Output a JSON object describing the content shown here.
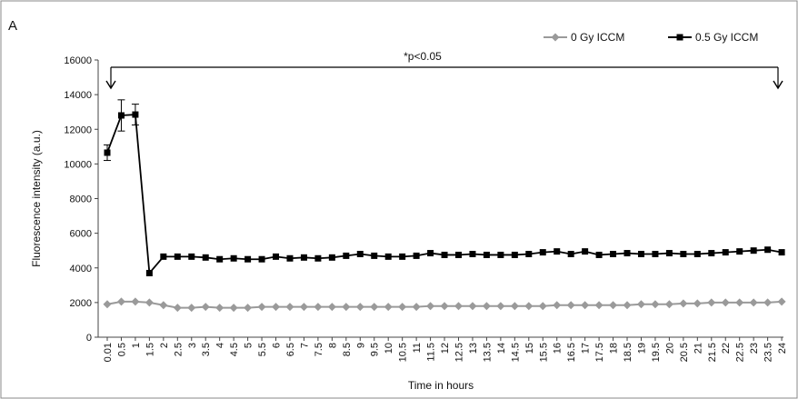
{
  "panel_label": "A",
  "chart_data": {
    "type": "line",
    "xlabel": "Time in hours",
    "ylabel": "Fluorescence intensity (a.u.)",
    "ylim": [
      0,
      16000
    ],
    "yticks": [
      0,
      2000,
      4000,
      6000,
      8000,
      10000,
      12000,
      14000,
      16000
    ],
    "grid": false,
    "legend_position": "top-right",
    "annotation": "*p<0.05",
    "x": [
      "0.01",
      "0.5",
      "1",
      "1.5",
      "2",
      "2.5",
      "3",
      "3.5",
      "4",
      "4.5",
      "5",
      "5.5",
      "6",
      "6.5",
      "7",
      "7.5",
      "8",
      "8.5",
      "9",
      "9.5",
      "10",
      "10.5",
      "11",
      "11.5",
      "12",
      "12.5",
      "13",
      "13.5",
      "14",
      "14.5",
      "15",
      "15.5",
      "16",
      "16.5",
      "17",
      "17.5",
      "18",
      "18.5",
      "19",
      "19.5",
      "20",
      "20.5",
      "21",
      "21.5",
      "22",
      "22.5",
      "23",
      "23.5",
      "24"
    ],
    "series": [
      {
        "name": "0 Gy ICCM",
        "color": "#9a9a9a",
        "marker": "diamond",
        "values": [
          1900,
          2050,
          2050,
          2000,
          1850,
          1700,
          1700,
          1750,
          1700,
          1700,
          1700,
          1750,
          1750,
          1750,
          1750,
          1750,
          1750,
          1750,
          1750,
          1750,
          1750,
          1750,
          1750,
          1800,
          1800,
          1800,
          1800,
          1800,
          1800,
          1800,
          1800,
          1800,
          1850,
          1850,
          1850,
          1850,
          1850,
          1850,
          1900,
          1900,
          1900,
          1950,
          1950,
          2000,
          2000,
          2000,
          2000,
          2000,
          2050
        ]
      },
      {
        "name": "0.5 Gy ICCM",
        "color": "#000000",
        "marker": "square",
        "values": [
          10650,
          12800,
          12850,
          3700,
          4650,
          4650,
          4650,
          4600,
          4500,
          4550,
          4500,
          4500,
          4650,
          4550,
          4600,
          4550,
          4600,
          4700,
          4800,
          4700,
          4650,
          4650,
          4700,
          4850,
          4750,
          4750,
          4800,
          4750,
          4750,
          4750,
          4800,
          4900,
          4950,
          4800,
          4950,
          4750,
          4800,
          4850,
          4800,
          4800,
          4850,
          4800,
          4800,
          4850,
          4900,
          4950,
          5000,
          5050,
          4900
        ],
        "errors": [
          450,
          900,
          600,
          0,
          0,
          0,
          0,
          0,
          0,
          0,
          0,
          0,
          0,
          0,
          0,
          0,
          0,
          0,
          0,
          0,
          0,
          0,
          0,
          0,
          0,
          0,
          0,
          0,
          0,
          0,
          0,
          0,
          0,
          0,
          0,
          0,
          0,
          0,
          0,
          0,
          0,
          0,
          0,
          0,
          0,
          0,
          0,
          0,
          0
        ]
      }
    ]
  }
}
